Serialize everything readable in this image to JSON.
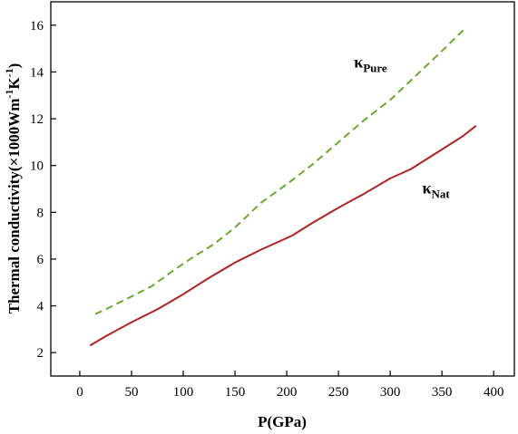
{
  "chart_data": {
    "type": "line",
    "title": "",
    "xlabel": "P(GPa)",
    "ylabel": {
      "base": "Thermal conductivity(×1000Wm",
      "sup1": "-1",
      "mid": "K",
      "sup2": "-1",
      "end": ")"
    },
    "xlim": [
      -28,
      420
    ],
    "ylim": [
      1,
      17
    ],
    "xticks": [
      0,
      50,
      100,
      150,
      200,
      250,
      300,
      350,
      400
    ],
    "yticks": [
      2,
      4,
      6,
      8,
      10,
      12,
      14,
      16
    ],
    "grid": false,
    "legend": "none",
    "series": [
      {
        "label_symbol": "κ",
        "label_sub": "Pure",
        "label_at": [
          265,
          14.2
        ],
        "color": "#6aaa2a",
        "dash": "dashed",
        "points": [
          [
            15,
            3.65
          ],
          [
            25,
            3.85
          ],
          [
            50,
            4.4
          ],
          [
            70,
            4.85
          ],
          [
            90,
            5.5
          ],
          [
            110,
            6.1
          ],
          [
            130,
            6.65
          ],
          [
            150,
            7.35
          ],
          [
            175,
            8.4
          ],
          [
            200,
            9.2
          ],
          [
            225,
            10.05
          ],
          [
            250,
            11.0
          ],
          [
            275,
            11.95
          ],
          [
            300,
            12.8
          ],
          [
            325,
            13.85
          ],
          [
            350,
            14.9
          ],
          [
            372,
            15.85
          ]
        ]
      },
      {
        "label_symbol": "κ",
        "label_sub": "Nat",
        "label_at": [
          331,
          8.8
        ],
        "color": "#b22222",
        "dash": "solid",
        "points": [
          [
            10,
            2.3
          ],
          [
            25,
            2.7
          ],
          [
            50,
            3.3
          ],
          [
            75,
            3.85
          ],
          [
            100,
            4.5
          ],
          [
            125,
            5.2
          ],
          [
            150,
            5.85
          ],
          [
            175,
            6.4
          ],
          [
            205,
            7.0
          ],
          [
            225,
            7.55
          ],
          [
            250,
            8.2
          ],
          [
            275,
            8.8
          ],
          [
            300,
            9.45
          ],
          [
            320,
            9.85
          ],
          [
            345,
            10.55
          ],
          [
            370,
            11.25
          ],
          [
            383,
            11.7
          ]
        ]
      }
    ]
  }
}
